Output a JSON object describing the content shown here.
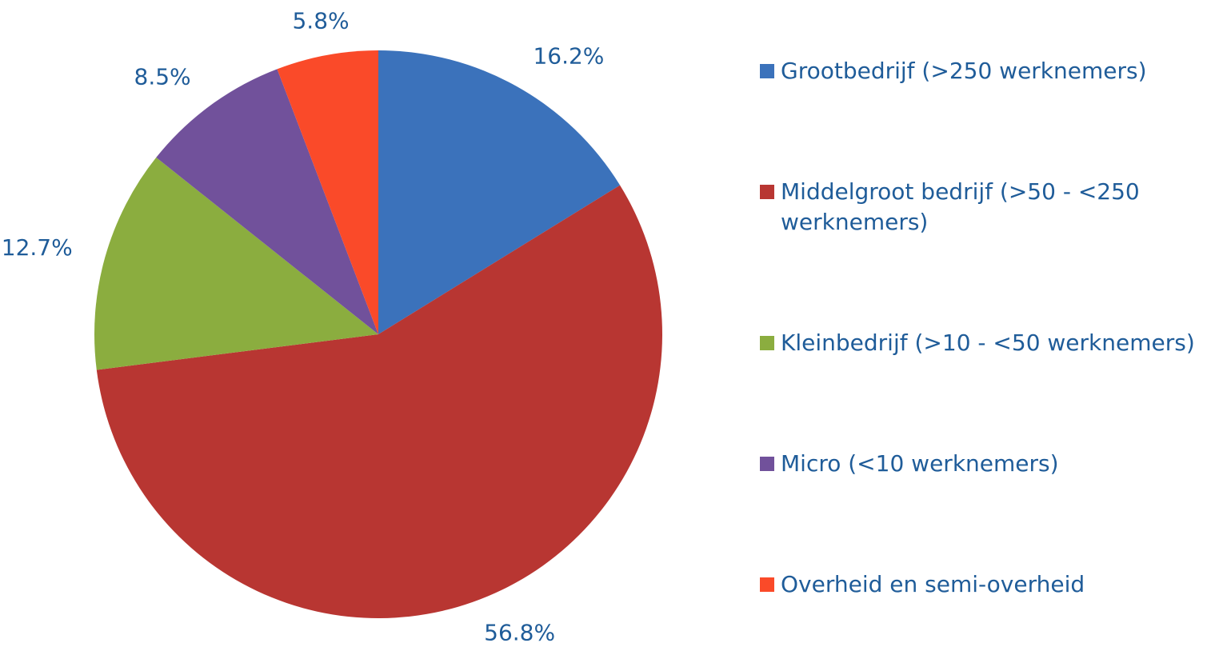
{
  "chart_data": {
    "type": "pie",
    "categories": [
      "Grootbedrijf (>250 werknemers)",
      "Middelgroot bedrijf (>50 - <250 werknemers)",
      "Kleinbedrijf (>10 - <50 werknemers)",
      "Micro (<10 werknemers)",
      "Overheid en semi-overheid"
    ],
    "values": [
      16.2,
      56.8,
      12.7,
      8.5,
      5.8
    ],
    "value_labels": [
      "16.2%",
      "56.8%",
      "12.7%",
      "8.5%",
      "5.8%"
    ],
    "colors": [
      "#3b72bb",
      "#b83632",
      "#8bad3f",
      "#71519b",
      "#fa4a29"
    ],
    "legend": "right"
  }
}
